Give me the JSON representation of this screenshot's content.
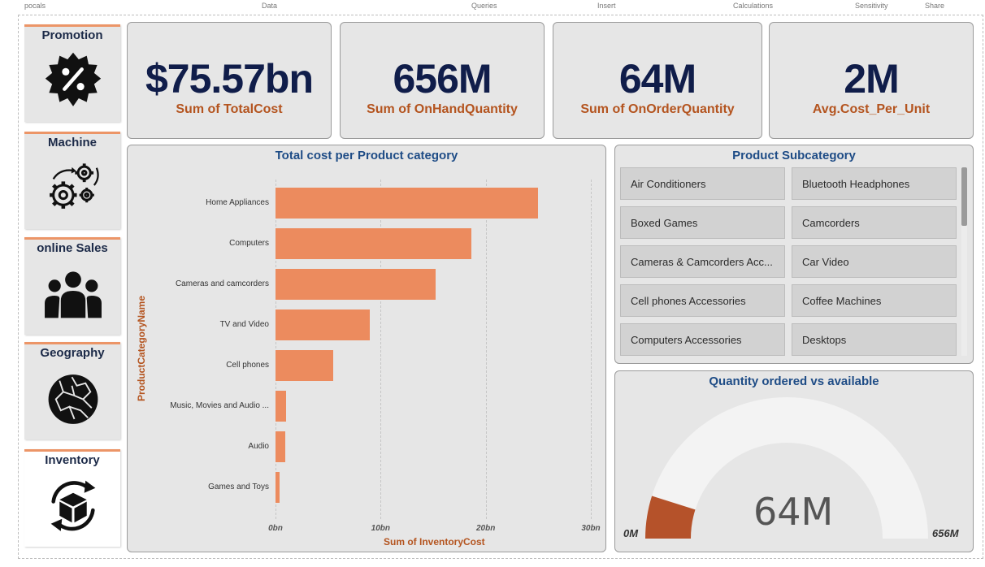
{
  "top_strip": [
    "pocals",
    "Data",
    "Queries",
    "Insert",
    "Calculations",
    "Sensitivity",
    "Share"
  ],
  "nav": [
    {
      "label": "Promotion",
      "icon": "percent-badge-icon"
    },
    {
      "label": "Machine",
      "icon": "gears-icon"
    },
    {
      "label": "online Sales",
      "icon": "users-icon"
    },
    {
      "label": "Geography",
      "icon": "globe-icon"
    },
    {
      "label": "Inventory",
      "icon": "box-refresh-icon"
    }
  ],
  "kpis": [
    {
      "value": "$75.57bn",
      "caption": "Sum of TotalCost"
    },
    {
      "value": "656M",
      "caption": "Sum of OnHandQuantity"
    },
    {
      "value": "64M",
      "caption": "Sum of OnOrderQuantity"
    },
    {
      "value": "2M",
      "caption": "Avg.Cost_Per_Unit"
    }
  ],
  "chart_data": {
    "type": "bar",
    "orientation": "horizontal",
    "title": "Total cost per Product category",
    "xlabel": "Sum of InventoryCost",
    "ylabel": "ProductCategoryName",
    "categories": [
      "Home Appliances",
      "Computers",
      "Cameras and camcorders",
      "TV and Video",
      "Cell phones",
      "Music, Movies and Audio ...",
      "Audio",
      "Games and Toys"
    ],
    "values": [
      25,
      18.6,
      15.2,
      9.0,
      5.5,
      1.0,
      0.9,
      0.4
    ],
    "unit": "bn",
    "xlim": [
      0,
      30
    ],
    "xticks": [
      "0bn",
      "10bn",
      "20bn",
      "30bn"
    ],
    "bar_color": "#ec8b5e",
    "grid": true
  },
  "slicer": {
    "title": "Product Subcategory",
    "items": [
      "Air Conditioners",
      "Bluetooth Headphones",
      "Boxed Games",
      "Camcorders",
      "Cameras & Camcorders Acc...",
      "Car Video",
      "Cell phones Accessories",
      "Coffee Machines",
      "Computers Accessories",
      "Desktops"
    ]
  },
  "gauge": {
    "title": "Quantity ordered vs available",
    "value": 64,
    "value_label": "64M",
    "min": 0,
    "max": 656,
    "min_label": "0M",
    "max_label": "656M",
    "fill_color": "#b5522a",
    "track_color": "#f3f3f3"
  },
  "colors": {
    "accent": "#ec9567",
    "kpi_value": "#101d4a",
    "caption": "#b4541f",
    "title": "#1e4c86"
  }
}
